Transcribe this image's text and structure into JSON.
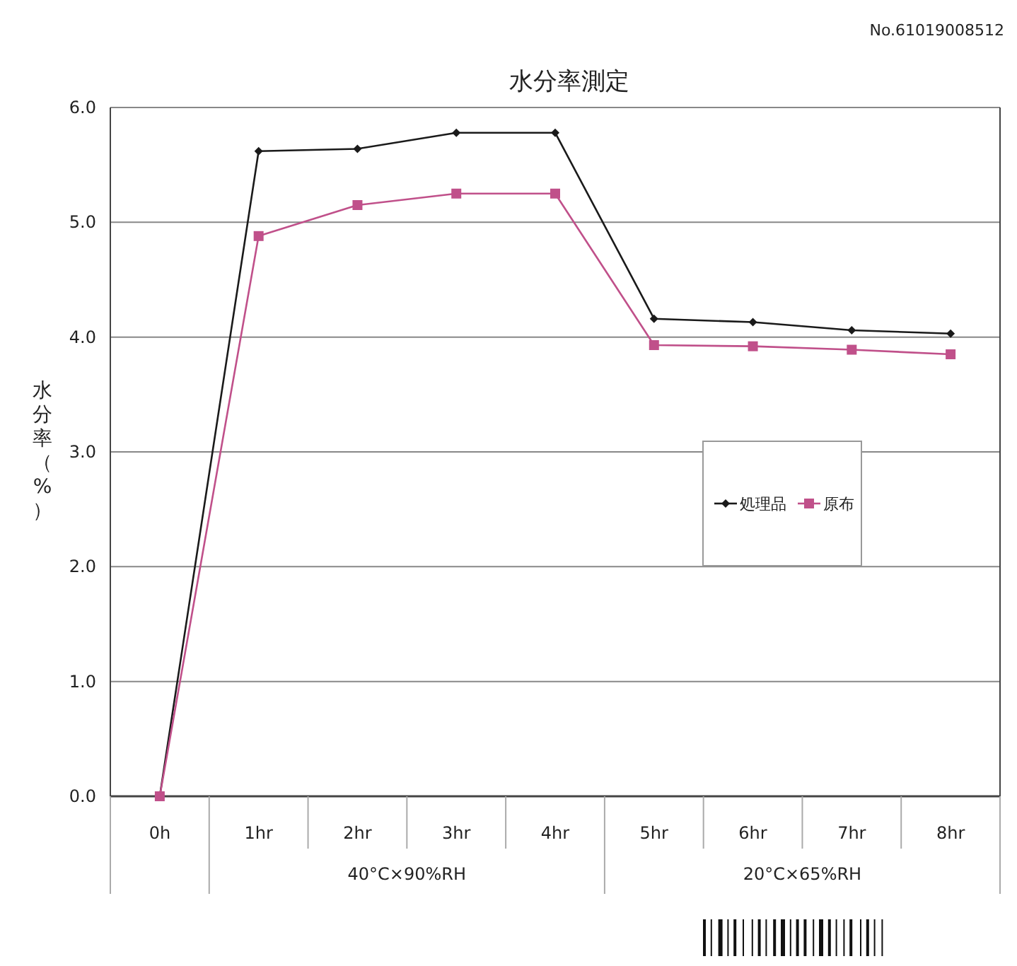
{
  "chart_data": {
    "type": "line",
    "title": "水分率測定",
    "ylabel": "水分率（%）",
    "categories": [
      "0h",
      "1hr",
      "2hr",
      "3hr",
      "4hr",
      "5hr",
      "6hr",
      "7hr",
      "8hr"
    ],
    "series": [
      {
        "name": "処理品",
        "color": "#1a1a1a",
        "marker": "diamond",
        "values": [
          0,
          5.62,
          5.64,
          5.78,
          5.78,
          4.16,
          4.13,
          4.06,
          4.03
        ]
      },
      {
        "name": "原布",
        "color": "#c0508a",
        "marker": "square",
        "values": [
          0,
          4.88,
          5.15,
          5.25,
          5.25,
          3.93,
          3.92,
          3.89,
          3.85
        ]
      }
    ],
    "ylim": [
      0,
      6
    ],
    "yticks": [
      {
        "value": 0,
        "label": "0.0"
      },
      {
        "value": 1,
        "label": "1.0"
      },
      {
        "value": 2,
        "label": "2.0"
      },
      {
        "value": 3,
        "label": "3.0"
      },
      {
        "value": 4,
        "label": "4.0"
      },
      {
        "value": 5,
        "label": "5.0"
      },
      {
        "value": 6,
        "label": "6.0"
      }
    ],
    "grid": "y",
    "legend": "right",
    "annotations": [
      "No.61019008512",
      "40°C×90%RH",
      "20°C×65%RH"
    ]
  }
}
